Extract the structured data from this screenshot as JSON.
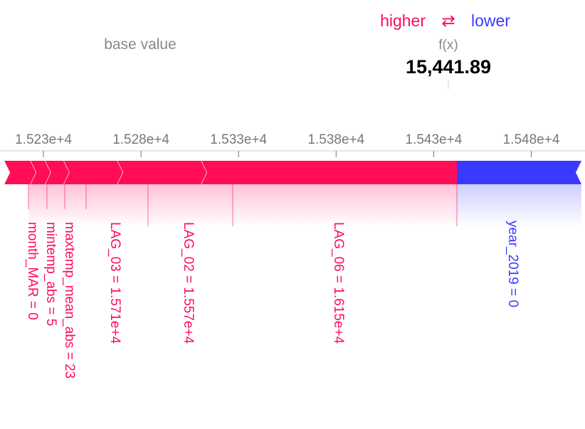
{
  "chart_data": {
    "type": "force",
    "legend": {
      "higher": "higher",
      "arrow": "⇄",
      "lower": "lower"
    },
    "base_value_label": "base value",
    "fx_label": "f(x)",
    "fx_value": 15441.89,
    "fx_value_text": "15,441.89",
    "xlim": [
      15210,
      15510
    ],
    "ticks": [
      15230,
      15280,
      15330,
      15380,
      15430,
      15480
    ],
    "tick_labels": [
      "1.523e+4",
      "1.528e+4",
      "1.533e+4",
      "1.538e+4",
      "1.543e+4",
      "1.548e+4"
    ],
    "colors": {
      "positive": "#ff0d57",
      "negative": "#3a3aff",
      "tick": "#777777",
      "fx": "#000000"
    },
    "positive_features": [
      {
        "label": "month_MAR = 0",
        "start": 15210.0,
        "end": 15223.5
      },
      {
        "label": "mintemp_abs = 5",
        "start": 15223.5,
        "end": 15231.0
      },
      {
        "label": "maxtemp_mean_abs = 23",
        "start": 15231.0,
        "end": 15240.5
      },
      {
        "label": "LAG_03 = 1.571e+4",
        "start": 15240.5,
        "end": 15268.0
      },
      {
        "label": "LAG_02 = 1.557e+4",
        "start": 15268.0,
        "end": 15311.0
      },
      {
        "label": "LAG_06 = 1.615e+4",
        "start": 15311.0,
        "end": 15441.89
      }
    ],
    "negative_features": [
      {
        "label": "year_2019 = 0",
        "start": 15441.89,
        "end": 15510.0
      }
    ]
  }
}
